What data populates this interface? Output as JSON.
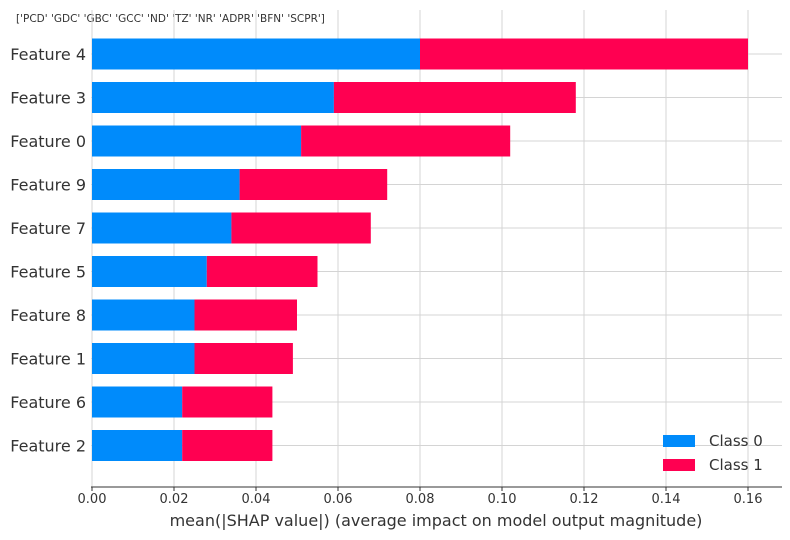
{
  "chart_data": {
    "type": "bar",
    "orientation": "horizontal",
    "stacked": true,
    "title": "['PCD' 'GDC' 'GBC' 'GCC' 'ND' 'TZ' 'NR' 'ADPR' 'BFN' 'SCPR']",
    "xlabel": "mean(|SHAP value|) (average impact on model output magnitude)",
    "ylabel": "",
    "xlim": [
      0.0,
      0.168
    ],
    "xticks": [
      "0.00",
      "0.02",
      "0.04",
      "0.06",
      "0.08",
      "0.10",
      "0.12",
      "0.14",
      "0.16"
    ],
    "categories": [
      "Feature 4",
      "Feature 3",
      "Feature 0",
      "Feature 9",
      "Feature 7",
      "Feature 5",
      "Feature 8",
      "Feature 1",
      "Feature 6",
      "Feature 2"
    ],
    "series": [
      {
        "name": "Class 0",
        "color": "#008bfb",
        "values": [
          0.08,
          0.059,
          0.051,
          0.036,
          0.034,
          0.028,
          0.025,
          0.025,
          0.022,
          0.022
        ]
      },
      {
        "name": "Class 1",
        "color": "#ff0051",
        "values": [
          0.08,
          0.059,
          0.051,
          0.036,
          0.034,
          0.027,
          0.025,
          0.024,
          0.022,
          0.022
        ]
      }
    ],
    "grid": true,
    "legend_position": "bottom-right"
  }
}
